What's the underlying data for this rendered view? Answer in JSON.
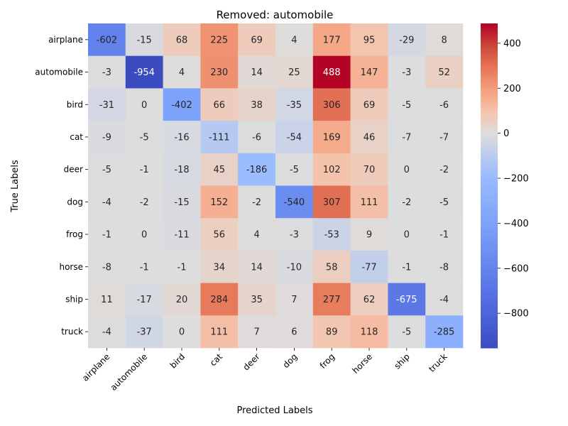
{
  "chart_data": {
    "type": "heatmap",
    "title": "Removed: automobile",
    "xlabel": "Predicted Labels",
    "ylabel": "True Labels",
    "x_categories": [
      "airplane",
      "automobile",
      "bird",
      "cat",
      "deer",
      "dog",
      "frog",
      "horse",
      "ship",
      "truck"
    ],
    "y_categories": [
      "airplane",
      "automobile",
      "bird",
      "cat",
      "deer",
      "dog",
      "frog",
      "horse",
      "ship",
      "truck"
    ],
    "values": [
      [
        -602,
        -15,
        68,
        225,
        69,
        4,
        177,
        95,
        -29,
        8
      ],
      [
        -3,
        -954,
        4,
        230,
        14,
        25,
        488,
        147,
        -3,
        52
      ],
      [
        -31,
        0,
        -402,
        66,
        38,
        -35,
        306,
        69,
        -5,
        -6
      ],
      [
        -9,
        -5,
        -16,
        -111,
        -6,
        -54,
        169,
        46,
        -7,
        -7
      ],
      [
        -5,
        -1,
        -18,
        45,
        -186,
        -5,
        102,
        70,
        0,
        -2
      ],
      [
        -4,
        -2,
        -15,
        152,
        -2,
        -540,
        307,
        111,
        -2,
        -5
      ],
      [
        -1,
        0,
        -11,
        56,
        4,
        -3,
        -53,
        9,
        0,
        -1
      ],
      [
        -8,
        -1,
        -1,
        34,
        14,
        -10,
        58,
        -77,
        -1,
        -8
      ],
      [
        11,
        -17,
        20,
        284,
        35,
        7,
        277,
        62,
        -675,
        -4
      ],
      [
        -4,
        -37,
        0,
        111,
        7,
        6,
        89,
        118,
        -5,
        -285
      ]
    ],
    "colormap": "coolwarm",
    "vmin": -954,
    "vmax": 488,
    "colorbar_ticks": [
      400,
      200,
      0,
      -200,
      -400,
      -600,
      -800
    ],
    "grid": false,
    "legend": "colorbar-right"
  }
}
